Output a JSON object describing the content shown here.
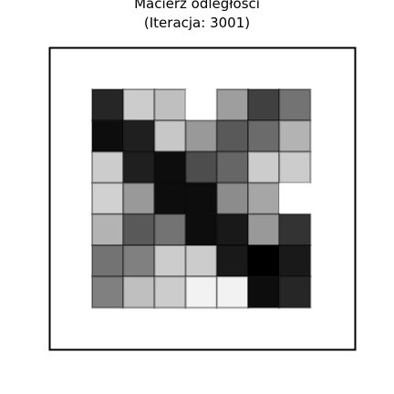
{
  "chart_data": {
    "type": "heatmap",
    "title": "Macierz odległości",
    "subtitle": "(Iteracja: 3001)",
    "xlabel": "",
    "ylabel": "",
    "grid": false,
    "axes_ticks": false,
    "colormap": "greys (white = 0, black = 1)",
    "rows": 7,
    "cols": 7,
    "values": [
      [
        0.85,
        0.2,
        0.25,
        0.0,
        0.38,
        0.75,
        0.55
      ],
      [
        0.95,
        0.88,
        0.22,
        0.4,
        0.65,
        0.58,
        0.3
      ],
      [
        0.2,
        0.88,
        0.95,
        0.7,
        0.6,
        0.2,
        0.2
      ],
      [
        0.18,
        0.4,
        0.95,
        0.95,
        0.45,
        0.35,
        0.0
      ],
      [
        0.3,
        0.65,
        0.55,
        0.95,
        0.9,
        0.4,
        0.8
      ],
      [
        0.55,
        0.5,
        0.2,
        0.2,
        0.9,
        1.0,
        0.9
      ],
      [
        0.5,
        0.25,
        0.2,
        0.05,
        0.05,
        0.95,
        0.85
      ]
    ]
  }
}
